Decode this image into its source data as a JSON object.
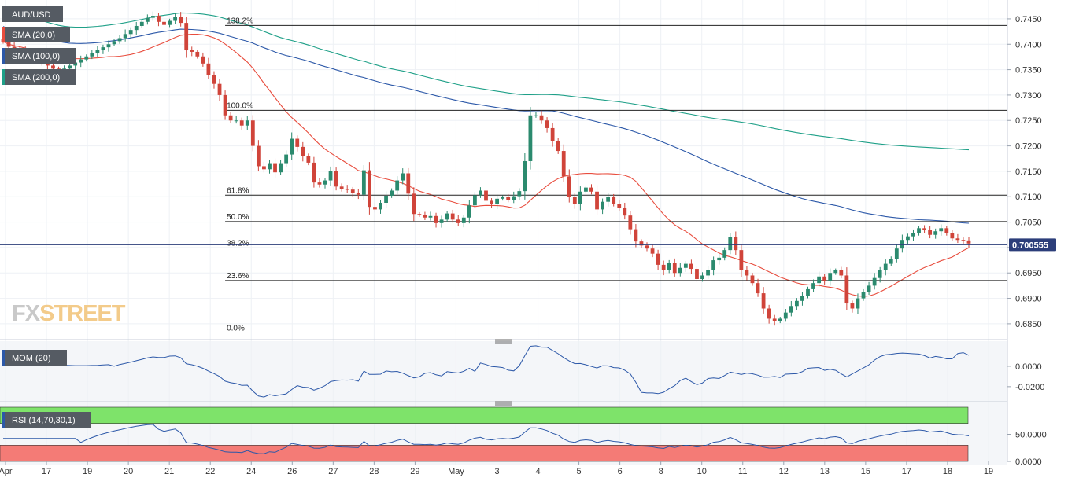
{
  "symbol": "AUD/USD",
  "last_price": "0.700555",
  "watermark": {
    "fx": "FX",
    "street": "STREET"
  },
  "indicators": [
    {
      "label": "SMA (20,0)",
      "color": "#e84c3d"
    },
    {
      "label": "SMA (100,0)",
      "color": "#2c58a8"
    },
    {
      "label": "SMA (200,0)",
      "color": "#1fa088"
    }
  ],
  "mom": {
    "label": "MOM (20)",
    "color": "#2c58a8",
    "ticks": [
      "0.0000",
      "-0.0200"
    ]
  },
  "rsi": {
    "label": "RSI (14,70,30,1)",
    "color": "#2c58a8",
    "ticks": [
      "50.0000",
      "0.0000"
    ],
    "overbought_color": "#7ee36a",
    "oversold_color": "#f47b76"
  },
  "colors": {
    "bull": "#2b8a6e",
    "bear": "#d0443a",
    "grid": "#eef1f5",
    "panel_bg": "#f4f6f9"
  },
  "chart_data": {
    "type": "candlestick",
    "price_axis": {
      "ticks": [
        "0.7450",
        "0.7400",
        "0.7350",
        "0.7300",
        "0.7250",
        "0.7200",
        "0.7150",
        "0.7100",
        "0.7050",
        "0.7000",
        "0.6950",
        "0.6900",
        "0.6850"
      ],
      "range": [
        0.6822,
        0.7487
      ]
    },
    "x_axis": {
      "labels": [
        "Apr",
        "17",
        "19",
        "20",
        "21",
        "22",
        "24",
        "26",
        "27",
        "28",
        "29",
        "May",
        "3",
        "4",
        "5",
        "6",
        "8",
        "10",
        "11",
        "12",
        "13",
        "15",
        "17",
        "18",
        "19"
      ]
    },
    "fibonacci": [
      {
        "label": "138.2%",
        "price": 0.7437
      },
      {
        "label": "100.0%",
        "price": 0.727
      },
      {
        "label": "61.8%",
        "price": 0.7103
      },
      {
        "label": "50.0%",
        "price": 0.7051
      },
      {
        "label": "38.2%",
        "price": 0.6999
      },
      {
        "label": "23.6%",
        "price": 0.6935
      },
      {
        "label": "0.0%",
        "price": 0.6832
      }
    ],
    "closes": [
      0.7405,
      0.7395,
      0.7392,
      0.7388,
      0.7382,
      0.7376,
      0.737,
      0.7364,
      0.7358,
      0.7352,
      0.7346,
      0.7352,
      0.7358,
      0.7364,
      0.737,
      0.7376,
      0.7382,
      0.7388,
      0.7394,
      0.74,
      0.7406,
      0.7412,
      0.742,
      0.7428,
      0.7436,
      0.7444,
      0.7452,
      0.7456,
      0.7444,
      0.7438,
      0.7446,
      0.7454,
      0.7442,
      0.7388,
      0.7385,
      0.7376,
      0.7362,
      0.734,
      0.7322,
      0.73,
      0.726,
      0.725,
      0.725,
      0.724,
      0.725,
      0.72,
      0.716,
      0.7154,
      0.7166,
      0.7148,
      0.7166,
      0.7183,
      0.7214,
      0.7198,
      0.718,
      0.7167,
      0.7128,
      0.7124,
      0.7132,
      0.715,
      0.712,
      0.7115,
      0.7114,
      0.7108,
      0.7104,
      0.7152,
      0.708,
      0.7075,
      0.7088,
      0.7102,
      0.7112,
      0.7132,
      0.7146,
      0.7106,
      0.7066,
      0.7064,
      0.7059,
      0.7062,
      0.7048,
      0.7055,
      0.7067,
      0.7055,
      0.7048,
      0.7059,
      0.7083,
      0.7103,
      0.7112,
      0.7092,
      0.7085,
      0.7096,
      0.7099,
      0.7094,
      0.7101,
      0.7111,
      0.717,
      0.726,
      0.726,
      0.725,
      0.7235,
      0.721,
      0.719,
      0.714,
      0.71,
      0.7085,
      0.711,
      0.7118,
      0.711,
      0.7075,
      0.709,
      0.71,
      0.7086,
      0.7078,
      0.7063,
      0.7036,
      0.7012,
      0.7004,
      0.6998,
      0.6988,
      0.6966,
      0.6955,
      0.697,
      0.695,
      0.696,
      0.6968,
      0.6958,
      0.6938,
      0.6945,
      0.6955,
      0.6975,
      0.698,
      0.6995,
      0.702,
      0.6995,
      0.6955,
      0.6945,
      0.693,
      0.691,
      0.688,
      0.686,
      0.6855,
      0.686,
      0.6872,
      0.6885,
      0.6895,
      0.6905,
      0.6918,
      0.693,
      0.6943,
      0.6935,
      0.695,
      0.6955,
      0.6945,
      0.689,
      0.688,
      0.69,
      0.6913,
      0.6925,
      0.694,
      0.6955,
      0.6968,
      0.6978,
      0.6998,
      0.7015,
      0.7022,
      0.7028,
      0.7038,
      0.7034,
      0.7025,
      0.7032,
      0.7038,
      0.7028,
      0.7018,
      0.7015,
      0.7014,
      0.7008
    ],
    "mom_range": [
      -0.034,
      0.02
    ],
    "rsi_range": [
      0,
      100
    ],
    "rsi_levels": [
      70,
      30
    ]
  }
}
